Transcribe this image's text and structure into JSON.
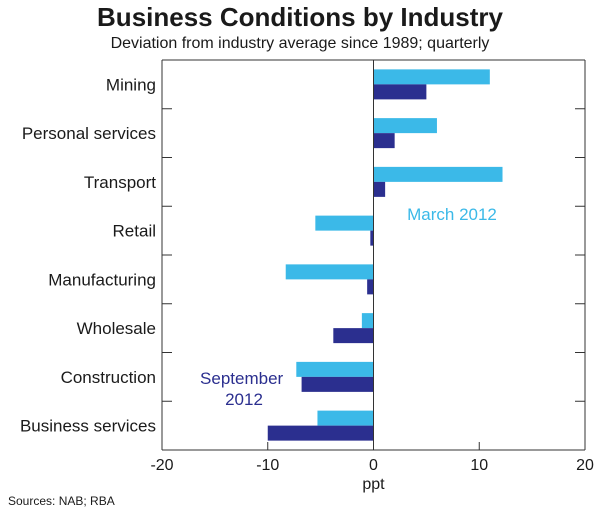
{
  "chart_data": {
    "type": "bar",
    "orientation": "horizontal",
    "title": "Business Conditions by Industry",
    "subtitle": "Deviation from industry average since 1989; quarterly",
    "categories": [
      "Mining",
      "Personal services",
      "Transport",
      "Retail",
      "Manufacturing",
      "Wholesale",
      "Construction",
      "Business services"
    ],
    "series": [
      {
        "name": "March 2012",
        "label_lines": [
          "March 2012"
        ],
        "color": "#3bb9e8",
        "values": [
          11,
          6,
          12.2,
          -5.5,
          -8.3,
          -1.1,
          -7.3,
          -5.3
        ]
      },
      {
        "name": "September 2012",
        "label_lines": [
          "September",
          "2012"
        ],
        "color": "#2b2f8f",
        "values": [
          5,
          2,
          1.1,
          -0.3,
          -0.6,
          -3.8,
          -6.8,
          -10
        ]
      }
    ],
    "xlabel": "ppt",
    "xlim": [
      -20,
      20
    ],
    "xticks": [
      -20,
      -10,
      0,
      10,
      20
    ],
    "xtick_labels": [
      "-20",
      "-10",
      "0",
      "10",
      "20"
    ]
  },
  "source": "Sources: NAB; RBA"
}
